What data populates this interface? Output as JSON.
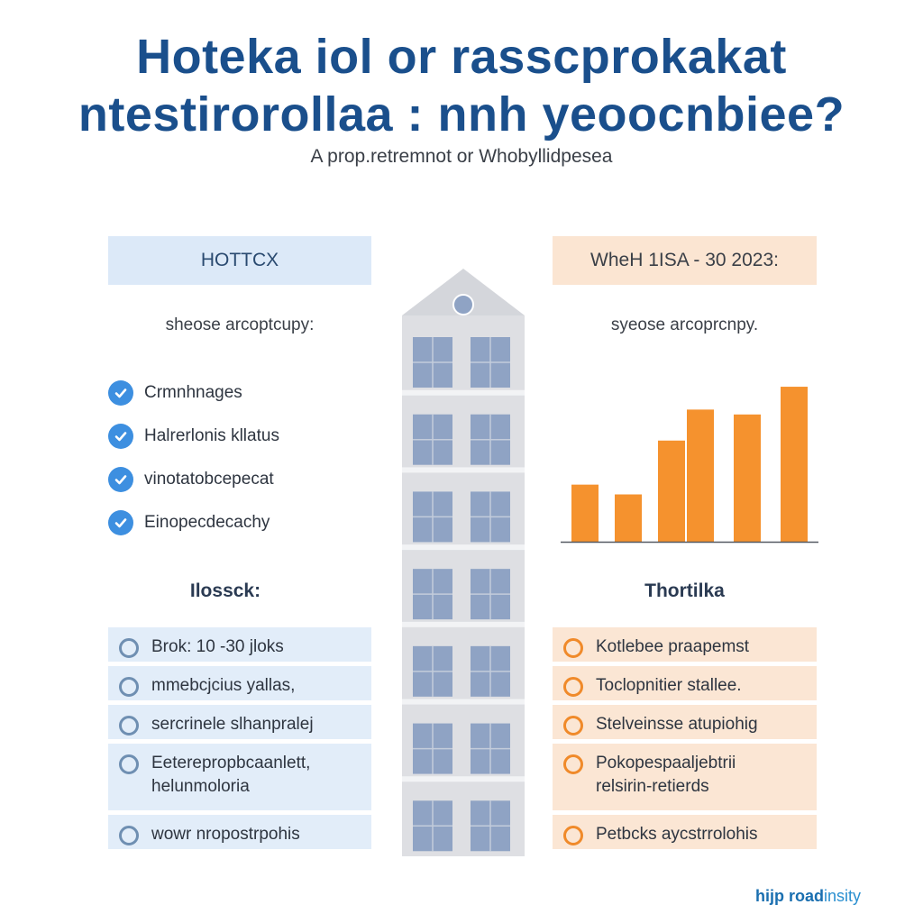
{
  "title": {
    "line1": "Hoteka iol  or rasscprokakat",
    "line2": "ntestirorollaa : nnh yeoocnbiee?"
  },
  "subtitle": "A prop.retremnot or Whobyllidpesea",
  "left": {
    "header": "HOTTCX",
    "caption": "sheose arcoptcupy:",
    "checklist": [
      {
        "label": "Crmnhnages",
        "icon": "check-circle-icon"
      },
      {
        "label": "Halrerlonis kllatus",
        "icon": "check-circle-icon"
      },
      {
        "label": "vinotatobcepecat",
        "icon": "check-circle-icon"
      },
      {
        "label": "Einopecdecachy",
        "icon": "check-circle-icon"
      }
    ],
    "section_title": "Ilossck:",
    "options": [
      {
        "lines": [
          "Brok: 10 -30 jloks"
        ]
      },
      {
        "lines": [
          "mmebcjcius yallas,"
        ]
      },
      {
        "lines": [
          "sercrinele slhanpralej"
        ]
      },
      {
        "lines": [
          "Eeterepropbcaanlett,",
          "helunmoloria"
        ]
      },
      {
        "lines": [
          "wowr nropostrpohis"
        ]
      }
    ]
  },
  "right": {
    "header": "WheH 1ISA - 30 2023:",
    "caption": "syeose arcoprcnpy.",
    "section_title": "Thortilka",
    "options": [
      {
        "lines": [
          "Kotlebee praapemst"
        ]
      },
      {
        "lines": [
          "Toclopnitier stallee."
        ]
      },
      {
        "lines": [
          "Stelveinsse atupiohig"
        ]
      },
      {
        "lines": [
          "Pokopespaaljebtrii",
          "relsirin-retierds"
        ]
      },
      {
        "lines": [
          "Petbcks aycstrrolohis"
        ]
      }
    ]
  },
  "chart_data": {
    "type": "bar",
    "categories": [
      "",
      "",
      "",
      "",
      "",
      ""
    ],
    "values": [
      35,
      29,
      62,
      81,
      78,
      95
    ],
    "ylim": [
      0,
      100
    ],
    "color": "#f5922e",
    "grid": false
  },
  "colors": {
    "title": "#1a4f8c",
    "check": "#3d8fe0",
    "left_bg": "#e2edf9",
    "right_bg": "#fbe6d4",
    "bar": "#f5922e",
    "building": "#dedfe3",
    "window": "#8fa3c4"
  },
  "building": {
    "floors": 7
  },
  "brand": {
    "bold": "hijp road",
    "rest": "insity"
  }
}
